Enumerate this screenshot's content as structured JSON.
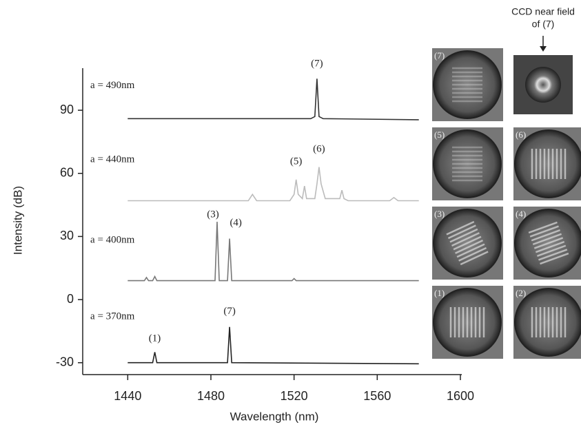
{
  "chart_data": {
    "type": "line",
    "xlabel": "Wavelength (nm)",
    "ylabel": "Intensity (dB)",
    "xlim": [
      1420,
      1600
    ],
    "xticks": [
      1440,
      1480,
      1520,
      1560,
      1600
    ],
    "ylim": [
      -35,
      110
    ],
    "yticks": [
      -30,
      0,
      30,
      60,
      90
    ],
    "series": [
      {
        "color": "#333333",
        "x": [
          1440,
          1528,
          1530,
          1531,
          1532,
          1534,
          1580
        ],
        "values": [
          86,
          86,
          87,
          105,
          87,
          86,
          85.5
        ]
      },
      {
        "color": "#bbbbbb",
        "x": [
          1440,
          1498,
          1500,
          1502,
          1518,
          1520,
          1521,
          1522,
          1524,
          1525,
          1526,
          1530,
          1531,
          1532,
          1533,
          1535,
          1542,
          1543,
          1544,
          1546,
          1566,
          1568,
          1570,
          1580
        ],
        "values": [
          47,
          47,
          50,
          47,
          47,
          50,
          57,
          50,
          48,
          54,
          48,
          48,
          55,
          63,
          55,
          48,
          48,
          52,
          48,
          47,
          47,
          48.5,
          47,
          47
        ]
      },
      {
        "color": "#777777",
        "x": [
          1440,
          1448,
          1449,
          1450,
          1452,
          1453,
          1454,
          1482,
          1483,
          1484,
          1488,
          1489,
          1490,
          1519,
          1520,
          1521,
          1580
        ],
        "values": [
          9,
          9,
          10.5,
          9,
          9,
          11,
          9,
          9,
          37,
          9,
          9,
          29,
          9,
          9,
          10,
          9,
          9
        ]
      },
      {
        "color": "#222222",
        "x": [
          1440,
          1452,
          1453,
          1454,
          1488,
          1489,
          1490,
          1580
        ],
        "values": [
          -30,
          -30,
          -25,
          -30,
          -30,
          -13,
          -30,
          -30.5
        ]
      }
    ],
    "annotations": [
      {
        "text": "a = 490nm",
        "x": 1422,
        "y": 101.7
      },
      {
        "text": "a = 440nm",
        "x": 1422,
        "y": 66.4
      },
      {
        "text": "a = 400nm",
        "x": 1422,
        "y": 28.2
      },
      {
        "text": "a = 370nm",
        "x": 1422,
        "y": -8.1
      },
      {
        "text": "(7)",
        "x": 1531,
        "y": 112
      },
      {
        "text": "(5)",
        "x": 1521,
        "y": 65.4
      },
      {
        "text": "(6)",
        "x": 1532,
        "y": 71.3
      },
      {
        "text": "(3)",
        "x": 1481,
        "y": 40.3
      },
      {
        "text": "(4)",
        "x": 1492,
        "y": 36.3
      },
      {
        "text": "(7)",
        "x": 1489,
        "y": -5.8
      },
      {
        "text": "(1)",
        "x": 1453,
        "y": -18.6
      }
    ],
    "panels": [
      "(7)",
      "(5)",
      "(6)",
      "(3)",
      "(4)",
      "(1)",
      "(2)"
    ],
    "ccd_caption": [
      "CCD near field",
      "of (7)"
    ]
  }
}
